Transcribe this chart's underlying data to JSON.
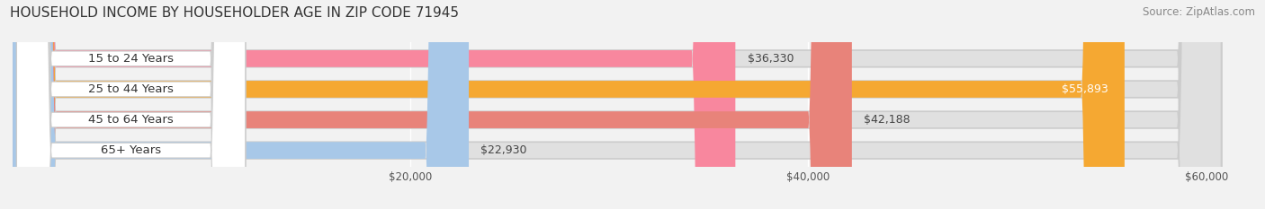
{
  "title": "HOUSEHOLD INCOME BY HOUSEHOLDER AGE IN ZIP CODE 71945",
  "source": "Source: ZipAtlas.com",
  "categories": [
    "15 to 24 Years",
    "25 to 44 Years",
    "45 to 64 Years",
    "65+ Years"
  ],
  "values": [
    36330,
    55893,
    42188,
    22930
  ],
  "bar_colors": [
    "#f8879e",
    "#f5a832",
    "#e8837a",
    "#a8c8e8"
  ],
  "label_colors": [
    "#555555",
    "#ffffff",
    "#555555",
    "#555555"
  ],
  "xlim": [
    0,
    62000
  ],
  "xticks": [
    20000,
    40000,
    60000
  ],
  "xtick_labels": [
    "$20,000",
    "$40,000",
    "$60,000"
  ],
  "bg_color": "#f2f2f2",
  "bar_bg_color": "#e0e0e0",
  "title_fontsize": 11,
  "source_fontsize": 8.5,
  "bar_label_fontsize": 9,
  "category_fontsize": 9.5,
  "pill_bg": "#ffffff",
  "pill_border": "#dddddd"
}
